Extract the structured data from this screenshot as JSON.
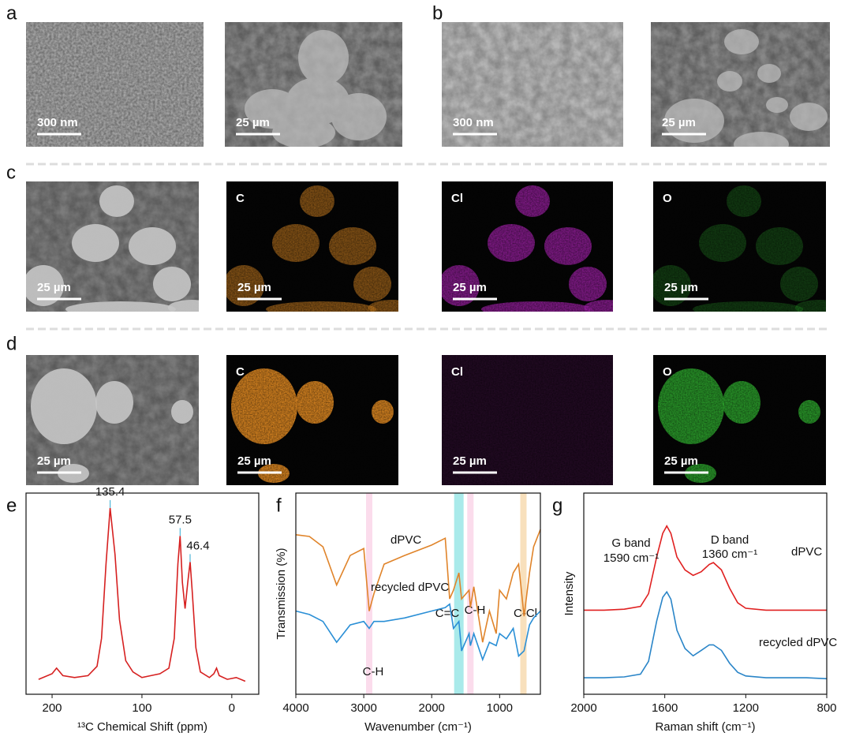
{
  "rows": [
    {
      "label": "a",
      "images": [
        {
          "scale": "300 nm"
        },
        {
          "scale": "25 µm"
        }
      ]
    },
    {
      "label": "b",
      "images": [
        {
          "scale": "300 nm"
        },
        {
          "scale": "25 µm"
        }
      ]
    },
    {
      "label": "c",
      "images": [
        {
          "scale": "25 µm"
        },
        {
          "element": "C",
          "scale": "25 µm"
        },
        {
          "element": "Cl",
          "scale": "25 µm"
        },
        {
          "element": "O",
          "scale": "25 µm"
        }
      ]
    },
    {
      "label": "d",
      "images": [
        {
          "scale": "25 µm"
        },
        {
          "element": "C",
          "scale": "25 µm"
        },
        {
          "element": "Cl",
          "scale": "25 µm"
        },
        {
          "element": "O",
          "scale": "25 µm"
        }
      ]
    }
  ],
  "chart_data": [
    {
      "type": "line",
      "panel": "e",
      "xlabel": "¹³C Chemical Shift (ppm)",
      "xlim": [
        229,
        -30
      ],
      "xticks": [
        200,
        100,
        0
      ],
      "ylim": [
        0,
        108
      ],
      "x": [
        215,
        200,
        195,
        188,
        175,
        160,
        150,
        145,
        140,
        135.4,
        130,
        125,
        118,
        110,
        100,
        90,
        80,
        70,
        64,
        60,
        57.5,
        55,
        52,
        49,
        46.4,
        44,
        40,
        35,
        25,
        20,
        17,
        14,
        5,
        -5,
        -15
      ],
      "series": [
        {
          "color": "#d62020",
          "values": [
            8,
            11,
            14,
            10,
            9,
            10,
            15,
            30,
            70,
            100,
            75,
            40,
            18,
            12,
            9,
            10,
            11,
            14,
            30,
            70,
            85,
            60,
            46,
            60,
            71,
            55,
            25,
            12,
            9,
            11,
            14,
            10,
            8,
            9,
            7
          ]
        }
      ],
      "peaks": [
        135.4,
        57.5,
        46.4
      ],
      "peak_color": "#4fb6d8"
    },
    {
      "type": "line",
      "panel": "f",
      "xlabel": "Wavenumber (cm⁻¹)",
      "ylabel": "Transmission (%)",
      "xlim": [
        4000,
        400
      ],
      "xticks": [
        4000,
        3000,
        2000,
        1000
      ],
      "ylim": [
        0,
        116
      ],
      "x": [
        4000,
        3800,
        3600,
        3400,
        3200,
        3000,
        2920,
        2850,
        2700,
        2400,
        2000,
        1800,
        1735,
        1680,
        1600,
        1560,
        1450,
        1430,
        1380,
        1250,
        1150,
        1050,
        1000,
        900,
        800,
        720,
        640,
        560,
        500,
        400
      ],
      "series": [
        {
          "name": "dPVC",
          "color": "#e0842a",
          "values": [
            92,
            91,
            85,
            63,
            80,
            84,
            48,
            58,
            75,
            80,
            86,
            90,
            55,
            60,
            70,
            55,
            60,
            50,
            62,
            30,
            48,
            35,
            60,
            55,
            70,
            75,
            45,
            70,
            85,
            95
          ]
        },
        {
          "name": "recycled dPVC",
          "color": "#2a8fd6",
          "values": [
            48,
            46,
            42,
            30,
            40,
            42,
            38,
            42,
            42,
            44,
            48,
            50,
            52,
            38,
            42,
            25,
            35,
            28,
            35,
            20,
            30,
            28,
            35,
            32,
            38,
            22,
            25,
            40,
            44,
            48
          ]
        }
      ],
      "bands": [
        {
          "label": "C-H",
          "center": 2920,
          "color": "#fbdcec"
        },
        {
          "label": "C=C",
          "center": 1600,
          "color": "#a9eaea"
        },
        {
          "label": "C-H",
          "center": 1430,
          "color": "#fbdcec"
        },
        {
          "label": "C-Cl",
          "center": 650,
          "color": "#f8e0bc"
        }
      ]
    },
    {
      "type": "line",
      "panel": "g",
      "xlabel": "Raman shift (cm⁻¹)",
      "ylabel": "Intensity",
      "xlim": [
        2000,
        800
      ],
      "xticks": [
        2000,
        1600,
        1200,
        800
      ],
      "ylim": [
        0,
        110
      ],
      "x": [
        2000,
        1900,
        1800,
        1720,
        1680,
        1640,
        1610,
        1590,
        1570,
        1540,
        1500,
        1460,
        1420,
        1380,
        1360,
        1320,
        1280,
        1240,
        1200,
        1100,
        1000,
        900,
        800
      ],
      "series": [
        {
          "name": "dPVC",
          "color": "#e02020",
          "values": [
            46,
            46,
            46.5,
            48,
            55,
            75,
            88,
            92,
            88,
            75,
            68,
            65,
            67,
            71,
            72,
            68,
            58,
            50,
            47,
            46,
            46,
            46,
            46
          ]
        },
        {
          "name": "recycled dPVC",
          "color": "#2a85c8",
          "values": [
            9,
            9,
            9.5,
            11,
            18,
            40,
            53,
            56,
            52,
            35,
            25,
            21,
            24,
            27,
            27,
            24,
            17,
            12,
            10,
            9,
            9,
            9,
            8.5
          ]
        }
      ],
      "annotations": [
        "G band",
        "1590 cm⁻¹",
        "D band",
        "1360 cm⁻¹"
      ]
    }
  ]
}
